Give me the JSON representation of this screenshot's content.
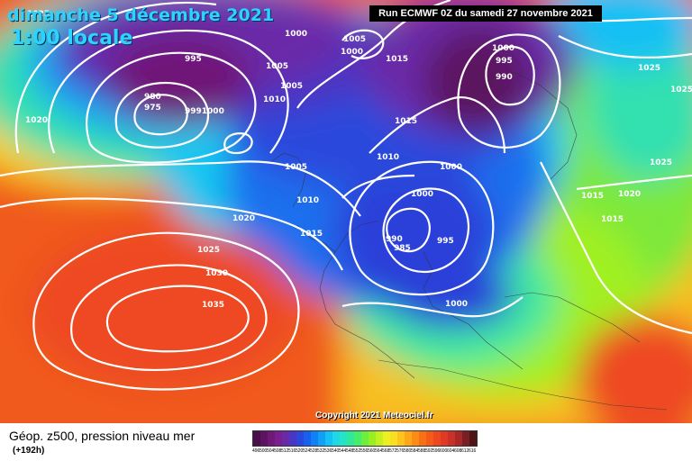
{
  "header": {
    "date": "dimanche 5 décembre 2021",
    "time": "1:00 locale",
    "run": "Run ECMWF 0Z du samedi 27 novembre 2021",
    "copyright": "Copyright 2021 Meteociel.fr"
  },
  "legend": {
    "title": "Géop. z500, pression niveau mer",
    "subtitle": "(+192h)",
    "scale_values": [
      "496",
      "500",
      "504",
      "508",
      "512",
      "516",
      "520",
      "524",
      "528",
      "532",
      "536",
      "540",
      "544",
      "548",
      "552",
      "556",
      "560",
      "564",
      "568",
      "572",
      "576",
      "580",
      "584",
      "588",
      "592",
      "596",
      "600",
      "604",
      "608",
      "612",
      "616"
    ],
    "scale_colors": [
      "#4a0f4a",
      "#5c1460",
      "#701878",
      "#7a1e90",
      "#6a2aa8",
      "#4a36c4",
      "#2a48dc",
      "#1a60ee",
      "#1080f5",
      "#10a0f8",
      "#14c0f4",
      "#1ed8e8",
      "#24e4c8",
      "#30e89c",
      "#48ec6c",
      "#6cf040",
      "#98f024",
      "#c4f020",
      "#ecf020",
      "#f8e020",
      "#fcc41c",
      "#fca818",
      "#fc8c14",
      "#f87014",
      "#f45a18",
      "#ee4820",
      "#e03a24",
      "#c83028",
      "#a8282a",
      "#7a1e26",
      "#4e1418"
    ]
  },
  "isobars": [
    "1025",
    "995",
    "1000",
    "1005",
    "1000",
    "1005",
    "1015",
    "1000",
    "995",
    "990",
    "1025",
    "1025",
    "1020",
    "1005",
    "980",
    "975",
    "9991000",
    "1010",
    "1015",
    "1010",
    "1000",
    "1025",
    "1005",
    "1000",
    "1010",
    "990",
    "985",
    "995",
    "1015",
    "1020",
    "1015",
    "1020",
    "1015",
    "1025",
    "1030",
    "1035",
    "1000"
  ]
}
